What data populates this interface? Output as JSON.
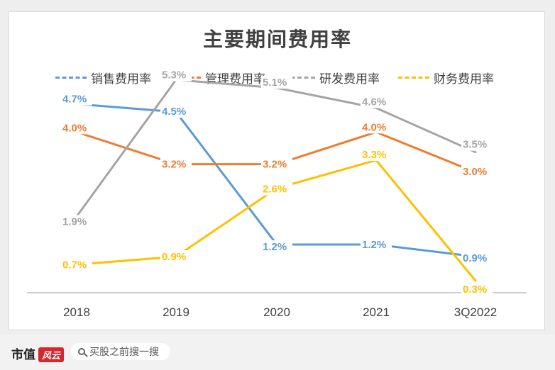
{
  "chart_data": {
    "type": "line",
    "title": "主要期间费用率",
    "categories": [
      "2018",
      "2019",
      "2020",
      "2021",
      "3Q2022"
    ],
    "ylim": [
      0,
      6
    ],
    "grid": false,
    "legend_position": "top",
    "series": [
      {
        "name": "销售费用率",
        "color": "#5b9bd5",
        "values": [
          4.7,
          4.5,
          1.2,
          1.2,
          0.9
        ],
        "labels": [
          "4.7%",
          "4.5%",
          "1.2%",
          "1.2%",
          "0.9%"
        ]
      },
      {
        "name": "管理费用率",
        "color": "#ed7d31",
        "values": [
          4.0,
          3.2,
          3.2,
          4.0,
          3.0
        ],
        "labels": [
          "4.0%",
          "3.2%",
          "3.2%",
          "4.0%",
          "3.0%"
        ]
      },
      {
        "name": "研发费用率",
        "color": "#a5a5a5",
        "values": [
          1.9,
          5.3,
          5.1,
          4.6,
          3.5
        ],
        "labels": [
          "1.9%",
          "5.3%",
          "5.1%",
          "4.6%",
          "3.5%"
        ]
      },
      {
        "name": "财务费用率",
        "color": "#ffc000",
        "values": [
          0.7,
          0.9,
          2.6,
          3.3,
          0.3
        ],
        "labels": [
          "0.7%",
          "0.9%",
          "2.6%",
          "3.3%",
          "0.3%"
        ]
      }
    ]
  },
  "footer": {
    "brand": "市值",
    "brand_mark": "风云",
    "search_text": "买股之前搜一搜"
  }
}
